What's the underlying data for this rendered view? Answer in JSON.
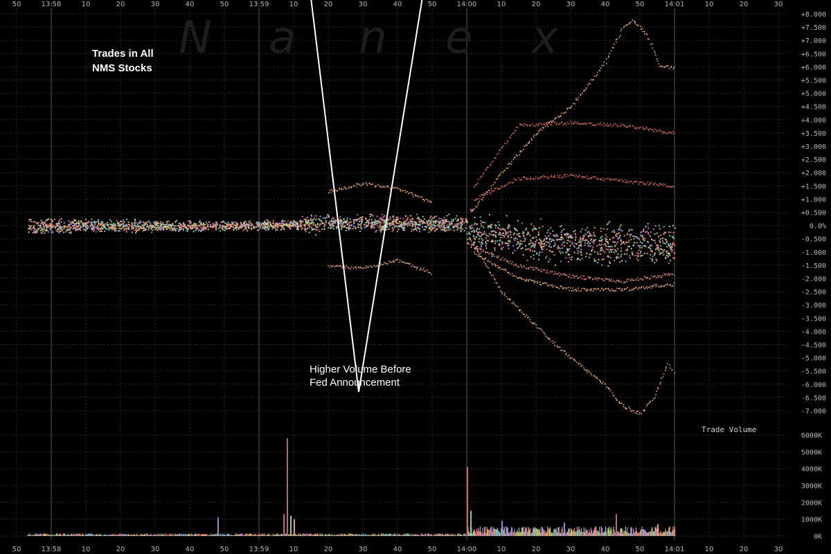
{
  "chart_data": [
    {
      "type": "scatter",
      "title": "Trades in All NMS Stocks",
      "title_lines": [
        "Trades in All",
        "NMS Stocks"
      ],
      "watermark": "Nanex",
      "watermark_letters": [
        "N",
        "a",
        "n",
        "e",
        "x"
      ],
      "xlabel": "",
      "ylabel": "",
      "x_ticks": [
        "50",
        "13:58",
        "10",
        "20",
        "30",
        "40",
        "50",
        "13:59",
        "10",
        "20",
        "30",
        "40",
        "50",
        "14:00",
        "10",
        "20",
        "30",
        "40",
        "50",
        "14:01",
        "10",
        "20",
        "30"
      ],
      "x_range_seconds": [
        -130,
        150
      ],
      "major_minute_marks_seconds": [
        -120,
        -60,
        0,
        60
      ],
      "y_ticks": [
        "+8.000",
        "+7.500",
        "+7.000",
        "+6.500",
        "+6.000",
        "+5.500",
        "+5.000",
        "+4.500",
        "+4.000",
        "+3.500",
        "+3.000",
        "+2.500",
        "+2.000",
        "+1.500",
        "+1.000",
        "+0.500",
        "0.0%",
        "-0.500",
        "-1.000",
        "-1.500",
        "-2.000",
        "-2.500",
        "-3.000",
        "-3.500",
        "-4.000",
        "-4.500",
        "-5.000",
        "-5.500",
        "-6.000",
        "-6.500",
        "-7.000"
      ],
      "ylim": [
        -7,
        8
      ],
      "grid": true,
      "series_colors": [
        "#f08a6a",
        "#e8a070",
        "#f4c080",
        "#b0d070",
        "#80d8a0",
        "#70c8d8",
        "#a090e0",
        "#d080c0",
        "#e06a5a"
      ],
      "envelope": [
        {
          "x": -127,
          "lo": -0.4,
          "hi": 0.4
        },
        {
          "x": -100,
          "lo": -0.3,
          "hi": 0.3
        },
        {
          "x": -70,
          "lo": -0.25,
          "hi": 0.25
        },
        {
          "x": -50,
          "lo": -0.2,
          "hi": 0.3
        },
        {
          "x": -45,
          "lo": -0.4,
          "hi": 0.6
        },
        {
          "x": -30,
          "lo": -0.3,
          "hi": 0.5
        },
        {
          "x": -10,
          "lo": -0.3,
          "hi": 0.5
        },
        {
          "x": -1,
          "lo": -0.3,
          "hi": 0.5
        },
        {
          "x": 0,
          "lo": -1.2,
          "hi": 0.8
        },
        {
          "x": 20,
          "lo": -1.6,
          "hi": 0.4
        },
        {
          "x": 40,
          "lo": -1.7,
          "hi": 0.3
        },
        {
          "x": 60,
          "lo": -1.8,
          "hi": 0.3
        }
      ],
      "outlier_paths": [
        {
          "color": "#f4b070",
          "points": [
            [
              1,
              0.5
            ],
            [
              10,
              2.0
            ],
            [
              20,
              3.5
            ],
            [
              30,
              4.5
            ],
            [
              40,
              6.2
            ],
            [
              45,
              7.5
            ],
            [
              48,
              7.8
            ],
            [
              52,
              7.2
            ],
            [
              56,
              6.0
            ],
            [
              60,
              6.0
            ]
          ]
        },
        {
          "color": "#f4b070",
          "points": [
            [
              1,
              -0.5
            ],
            [
              10,
              -2.5
            ],
            [
              20,
              -3.8
            ],
            [
              30,
              -5.0
            ],
            [
              40,
              -6.0
            ],
            [
              45,
              -6.8
            ],
            [
              50,
              -7.1
            ],
            [
              54,
              -6.5
            ],
            [
              58,
              -5.2
            ],
            [
              60,
              -5.6
            ]
          ]
        },
        {
          "color": "#e06a5a",
          "points": [
            [
              2,
              1.5
            ],
            [
              15,
              3.8
            ],
            [
              30,
              3.9
            ],
            [
              45,
              3.8
            ],
            [
              60,
              3.5
            ]
          ]
        },
        {
          "color": "#e06a5a",
          "points": [
            [
              2,
              1.0
            ],
            [
              15,
              1.8
            ],
            [
              30,
              1.9
            ],
            [
              45,
              1.7
            ],
            [
              60,
              1.5
            ]
          ]
        },
        {
          "color": "#f4b070",
          "points": [
            [
              2,
              -1.0
            ],
            [
              15,
              -2.0
            ],
            [
              30,
              -2.4
            ],
            [
              45,
              -2.4
            ],
            [
              60,
              -2.2
            ]
          ]
        },
        {
          "color": "#e88a80",
          "points": [
            [
              2,
              -0.8
            ],
            [
              15,
              -1.5
            ],
            [
              30,
              -1.9
            ],
            [
              45,
              -2.1
            ],
            [
              60,
              -1.8
            ]
          ]
        },
        {
          "color": "#e8a070",
          "points": [
            [
              -40,
              1.3
            ],
            [
              -30,
              1.6
            ],
            [
              -20,
              1.4
            ],
            [
              -10,
              0.9
            ]
          ]
        },
        {
          "color": "#e8a070",
          "points": [
            [
              -40,
              -1.5
            ],
            [
              -30,
              -1.6
            ],
            [
              -20,
              -1.3
            ],
            [
              -10,
              -1.8
            ]
          ]
        }
      ]
    },
    {
      "type": "bar",
      "title": "Trade Volume",
      "y_ticks": [
        "6000K",
        "5000K",
        "4000K",
        "3000K",
        "2000K",
        "1000K",
        "0K"
      ],
      "ylim": [
        0,
        6000
      ],
      "unit": "K",
      "spikes": [
        {
          "x": -72,
          "values": [
            1100
          ],
          "color": "#a080d0"
        },
        {
          "x": -53,
          "values": [
            1300
          ],
          "color": "#d06a5a"
        },
        {
          "x": -52,
          "values": [
            5800
          ],
          "color": "#b06a8a"
        },
        {
          "x": -51,
          "values": [
            1200
          ],
          "color": "#80d0a0"
        },
        {
          "x": -50,
          "values": [
            1000
          ],
          "color": "#f0a070"
        },
        {
          "x": 0,
          "values": [
            4100
          ],
          "color": "#d06a5a"
        },
        {
          "x": 1,
          "values": [
            1500
          ],
          "color": "#80d0a0"
        },
        {
          "x": 10,
          "values": [
            900
          ],
          "color": "#a080d0"
        },
        {
          "x": 28,
          "values": [
            800
          ],
          "color": "#a080d0"
        },
        {
          "x": 43,
          "values": [
            1300
          ],
          "color": "#b06a8a"
        },
        {
          "x": 55,
          "values": [
            700
          ],
          "color": "#f0a070"
        }
      ],
      "baseline_level": 120,
      "post_event_level": 450
    }
  ],
  "annotation": {
    "lines": [
      "Higher Volume Before",
      "Fed Announcement"
    ],
    "arrows": [
      [
        -50,
        14
      ],
      [
        0,
        19
      ]
    ]
  }
}
